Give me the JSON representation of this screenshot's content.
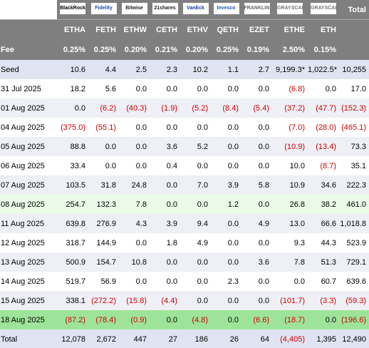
{
  "header": {
    "logos": [
      "BlackRock",
      "Fidelity",
      "Bitwise",
      "21shares",
      "VanEck",
      "Invesco",
      "FRANKLIN TEMPLETON",
      "GRAYSCALE",
      "GRAYSCALE"
    ],
    "total": "Total",
    "tickers": [
      "ETHA",
      "FETH",
      "ETHW",
      "CETH",
      "ETHV",
      "QETH",
      "EZET",
      "ETHE",
      "ETH"
    ],
    "fee_label": "Fee",
    "fees": [
      "0.25%",
      "0.25%",
      "0.20%",
      "0.21%",
      "0.20%",
      "0.25%",
      "0.19%",
      "2.50%",
      "0.15%"
    ]
  },
  "rows": [
    {
      "label": "Seed",
      "values": [
        "10.6",
        "4.4",
        "2.5",
        "2.3",
        "10.2",
        "1.1",
        "2.7",
        "9,199.3*",
        "1,022.5*",
        "10,255"
      ]
    },
    {
      "label": "31 Jul 2025",
      "values": [
        "18.2",
        "5.6",
        "0.0",
        "0.0",
        "0.0",
        "0.0",
        "0.0",
        "(6.8)",
        "0.0",
        "17.0"
      ]
    },
    {
      "label": "01 Aug 2025",
      "values": [
        "0.0",
        "(6.2)",
        "(40.3)",
        "(1.9)",
        "(5.2)",
        "(8.4)",
        "(5.4)",
        "(37.2)",
        "(47.7)",
        "(152.3)"
      ]
    },
    {
      "label": "04 Aug 2025",
      "values": [
        "(375.0)",
        "(55.1)",
        "0.0",
        "0.0",
        "0.0",
        "0.0",
        "0.0",
        "(7.0)",
        "(28.0)",
        "(465.1)"
      ]
    },
    {
      "label": "05 Aug 2025",
      "values": [
        "88.8",
        "0.0",
        "0.0",
        "3.6",
        "5.2",
        "0.0",
        "0.0",
        "(10.9)",
        "(13.4)",
        "73.3"
      ]
    },
    {
      "label": "06 Aug 2025",
      "values": [
        "33.4",
        "0.0",
        "0.0",
        "0.4",
        "0.0",
        "0.0",
        "0.0",
        "10.0",
        "(8.7)",
        "35.1"
      ]
    },
    {
      "label": "07 Aug 2025",
      "values": [
        "103.5",
        "31.8",
        "24.8",
        "0.0",
        "7.0",
        "3.9",
        "5.8",
        "10.9",
        "34.6",
        "222.3"
      ]
    },
    {
      "label": "08 Aug 2025",
      "values": [
        "254.7",
        "132.3",
        "7.8",
        "0.0",
        "0.0",
        "1.2",
        "0.0",
        "26.8",
        "38.2",
        "461.0"
      ]
    },
    {
      "label": "11 Aug 2025",
      "values": [
        "639.8",
        "276.9",
        "4.3",
        "3.9",
        "9.4",
        "0.0",
        "4.9",
        "13.0",
        "66.6",
        "1,018.8"
      ]
    },
    {
      "label": "12 Aug 2025",
      "values": [
        "318.7",
        "144.9",
        "0.0",
        "1.8",
        "4.9",
        "0.0",
        "0.0",
        "9.3",
        "44.3",
        "523.9"
      ]
    },
    {
      "label": "13 Aug 2025",
      "values": [
        "500.9",
        "154.7",
        "10.8",
        "0.0",
        "0.0",
        "0.0",
        "3.6",
        "7.8",
        "51.3",
        "729.1"
      ]
    },
    {
      "label": "14 Aug 2025",
      "values": [
        "519.7",
        "56.9",
        "0.0",
        "0.0",
        "0.0",
        "2.3",
        "0.0",
        "0.0",
        "60.7",
        "639.6"
      ]
    },
    {
      "label": "15 Aug 2025",
      "values": [
        "338.1",
        "(272.2)",
        "(15.8)",
        "(4.4)",
        "0.0",
        "0.0",
        "0.0",
        "(101.7)",
        "(3.3)",
        "(59.3)"
      ]
    },
    {
      "label": "18 Aug 2025",
      "values": [
        "(87.2)",
        "(78.4)",
        "(0.9)",
        "0.0",
        "(4.8)",
        "0.0",
        "(6.6)",
        "(18.7)",
        "0.0",
        "(196.6)"
      ]
    }
  ],
  "total_row": {
    "label": "Total",
    "values": [
      "12,078",
      "2,672",
      "447",
      "27",
      "186",
      "26",
      "64",
      "(4,405)",
      "1,395",
      "12,490"
    ]
  }
}
